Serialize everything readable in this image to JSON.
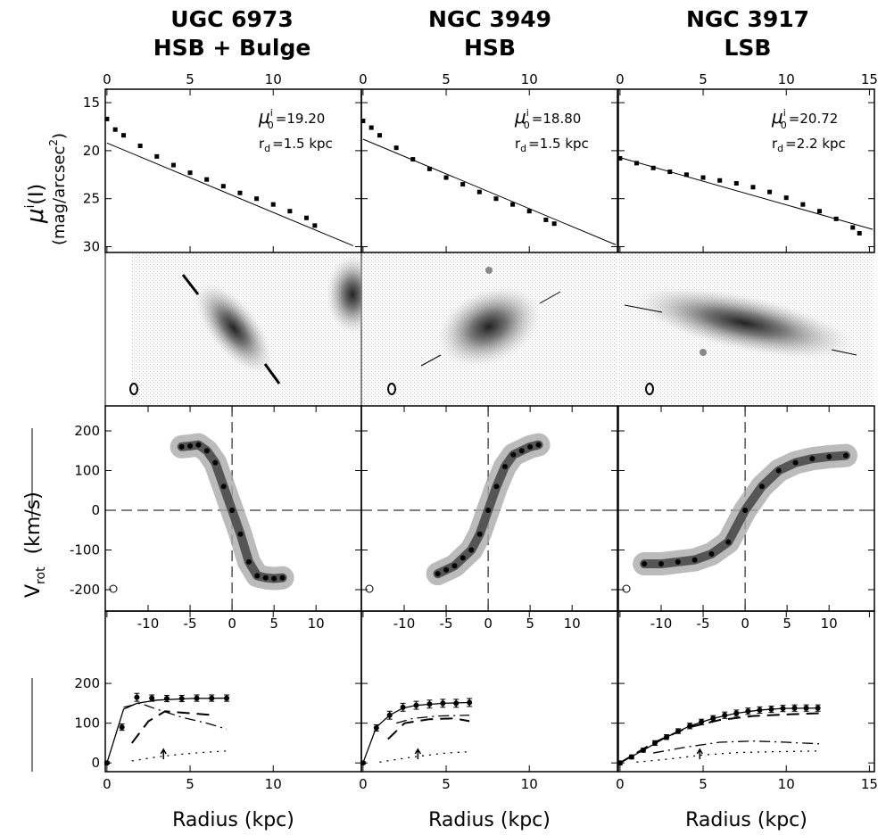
{
  "titles": [
    [
      "UGC 6973",
      "HSB + Bulge"
    ],
    [
      "NGC 3949",
      "HSB"
    ],
    [
      "NGC 3917",
      "LSB"
    ]
  ],
  "v_label": [
    "V",
    "rot",
    "(km/s)"
  ],
  "chart_data": [
    {
      "type": "scatter",
      "x": [
        0,
        0.5,
        1,
        2,
        3,
        4,
        5,
        6,
        7,
        8,
        9,
        10,
        11,
        12,
        12.5
      ],
      "values": [
        16.7,
        17.8,
        18.4,
        19.5,
        20.6,
        21.5,
        22.3,
        23.0,
        23.7,
        24.4,
        25.0,
        25.6,
        26.3,
        27.0,
        27.8
      ],
      "color": "#000000",
      "fit": {
        "x": [
          0,
          14.8
        ],
        "values": [
          19.2,
          29.9
        ]
      },
      "xlim": [
        -0.1,
        15.3
      ],
      "ylim": [
        30.6,
        13.6
      ],
      "xticks": [
        0,
        5,
        10
      ],
      "yticks": [
        15,
        20,
        25,
        30
      ],
      "ytick_labels": true,
      "annotations": [
        [
          "μ",
          "i",
          "0",
          "=19.20"
        ],
        [
          "r",
          "d",
          "=1.5 kpc"
        ]
      ],
      "ylabel": [
        [
          "μ",
          "i",
          "(I)"
        ],
        [
          "(mag/arcsec",
          "2",
          ")"
        ]
      ]
    },
    {
      "type": "scatter",
      "x": [
        0,
        0.5,
        1,
        2,
        3,
        4,
        5,
        6,
        7,
        8,
        9,
        10,
        11,
        11.5
      ],
      "values": [
        16.9,
        17.6,
        18.4,
        19.7,
        20.9,
        21.9,
        22.8,
        23.5,
        24.3,
        25.0,
        25.6,
        26.3,
        27.2,
        27.6
      ],
      "color": "#000000",
      "fit": {
        "x": [
          0,
          15.2
        ],
        "values": [
          18.8,
          29.8
        ]
      },
      "xlim": [
        -0.1,
        15.3
      ],
      "ylim": [
        30.6,
        13.6
      ],
      "xticks": [
        0,
        5,
        10
      ],
      "yticks": [
        15,
        20,
        25,
        30
      ],
      "ytick_labels": false,
      "annotations": [
        [
          "μ",
          "i",
          "0",
          "=18.80"
        ],
        [
          "r",
          "d",
          "=1.5 kpc"
        ]
      ]
    },
    {
      "type": "scatter",
      "x": [
        0,
        1,
        2,
        3,
        4,
        5,
        6,
        7,
        8,
        9,
        10,
        11,
        12,
        13,
        14,
        14.4
      ],
      "values": [
        20.8,
        21.3,
        21.8,
        22.2,
        22.5,
        22.8,
        23.1,
        23.4,
        23.8,
        24.3,
        24.9,
        25.6,
        26.3,
        27.1,
        28.0,
        28.6
      ],
      "color": "#000000",
      "fit": {
        "x": [
          0,
          15.2
        ],
        "values": [
          20.72,
          28.2
        ]
      },
      "xlim": [
        -0.1,
        15.3
      ],
      "ylim": [
        30.6,
        13.6
      ],
      "xticks": [
        0,
        5,
        10,
        15
      ],
      "yticks": [
        15,
        20,
        25,
        30
      ],
      "ytick_labels": false,
      "annotations": [
        [
          "μ",
          "i",
          "0",
          "=20.72"
        ],
        [
          "r",
          "d",
          "=2.2 kpc"
        ]
      ]
    },
    {
      "type": "contour",
      "x": [
        -6,
        -5,
        -4,
        -3,
        -2,
        -1,
        0,
        1,
        2,
        3,
        4,
        5,
        6
      ],
      "values": [
        160,
        162,
        165,
        150,
        120,
        60,
        0,
        -60,
        -130,
        -165,
        -170,
        -172,
        -170
      ],
      "color": "#000000",
      "zero_lines": true,
      "xlim": [
        -15.1,
        15.4
      ],
      "ylim": [
        -254,
        263
      ],
      "xticks": [
        -10,
        -5,
        0,
        5,
        10
      ],
      "yticks": [
        200,
        100,
        0,
        -100,
        -200
      ],
      "ytick_labels": true
    },
    {
      "type": "contour",
      "x": [
        -6,
        -5,
        -4,
        -3,
        -2,
        -1,
        0,
        1,
        2,
        3,
        4,
        5,
        6
      ],
      "values": [
        -160,
        -150,
        -140,
        -120,
        -100,
        -60,
        0,
        60,
        110,
        140,
        150,
        160,
        165
      ],
      "color": "#000000",
      "zero_lines": true,
      "xlim": [
        -15.1,
        15.4
      ],
      "ylim": [
        -254,
        263
      ],
      "xticks": [
        -10,
        -5,
        0,
        5,
        10
      ],
      "yticks": [
        200,
        100,
        0,
        -100,
        -200
      ],
      "ytick_labels": false
    },
    {
      "type": "contour",
      "x": [
        -12,
        -10,
        -8,
        -6,
        -4,
        -2,
        0,
        2,
        4,
        6,
        8,
        10,
        12
      ],
      "values": [
        -135,
        -135,
        -130,
        -125,
        -110,
        -80,
        0,
        60,
        100,
        120,
        130,
        135,
        138
      ],
      "color": "#000000",
      "zero_lines": true,
      "xlim": [
        -15.1,
        15.4
      ],
      "ylim": [
        -254,
        263
      ],
      "xticks": [
        -10,
        -5,
        0,
        5,
        10
      ],
      "yticks": [
        200,
        100,
        0,
        -100,
        -200
      ],
      "ytick_labels": false
    },
    {
      "type": "line",
      "x": [
        0,
        0.9,
        1.8,
        2.7,
        3.6,
        4.5,
        5.4,
        6.3,
        7.2
      ],
      "values": [
        0,
        90,
        165,
        163,
        162,
        162,
        163,
        163,
        163
      ],
      "errors": [
        3,
        8,
        10,
        8,
        8,
        8,
        8,
        8,
        8
      ],
      "color": "#000000",
      "models": [
        {
          "dash": "solid",
          "x": [
            0,
            1,
            1.8,
            3,
            5,
            7.2
          ],
          "values": [
            0,
            135,
            150,
            158,
            162,
            163
          ]
        },
        {
          "dash": "dashed",
          "x": [
            1.5,
            2.5,
            3.5,
            5,
            6.5
          ],
          "values": [
            50,
            105,
            130,
            125,
            120
          ]
        },
        {
          "dash": "dashdot",
          "x": [
            1,
            2,
            3,
            4.5,
            6,
            7.2
          ],
          "values": [
            140,
            150,
            135,
            115,
            100,
            85
          ]
        },
        {
          "dash": "dotted",
          "x": [
            1.5,
            3,
            4.5,
            6,
            7.2
          ],
          "values": [
            5,
            15,
            22,
            27,
            30
          ]
        }
      ],
      "arrow_x": 3.4,
      "x_label": "Radius (kpc)",
      "xlim": [
        -0.1,
        15.3
      ],
      "ylim": [
        -22,
        382
      ],
      "xticks": [
        0,
        5,
        10
      ],
      "yticks": [
        0,
        100,
        200
      ],
      "ytick_labels": true
    },
    {
      "type": "line",
      "x": [
        0,
        0.8,
        1.6,
        2.4,
        3.2,
        4,
        4.8,
        5.6,
        6.4
      ],
      "values": [
        0,
        88,
        120,
        140,
        145,
        148,
        150,
        150,
        152
      ],
      "errors": [
        3,
        8,
        10,
        10,
        10,
        10,
        10,
        10,
        10
      ],
      "color": "#000000",
      "models": [
        {
          "dash": "solid",
          "x": [
            0,
            0.8,
            1.6,
            2.4,
            3.2,
            4.8,
            6.4
          ],
          "values": [
            0,
            90,
            120,
            138,
            145,
            150,
            152
          ]
        },
        {
          "dash": "dashed",
          "x": [
            1.5,
            2.5,
            4,
            5.5,
            6.4
          ],
          "values": [
            60,
            100,
            110,
            112,
            105
          ]
        },
        {
          "dash": "dashdot",
          "x": [
            2,
            3,
            4.5,
            6.4
          ],
          "values": [
            100,
            112,
            118,
            120
          ]
        },
        {
          "dash": "dotted",
          "x": [
            1,
            3,
            5,
            6.4
          ],
          "values": [
            2,
            15,
            25,
            28
          ]
        }
      ],
      "arrow_x": 3.3,
      "x_label": "Radius (kpc)",
      "xlim": [
        -0.1,
        15.3
      ],
      "ylim": [
        -22,
        382
      ],
      "xticks": [
        0,
        5,
        10
      ],
      "yticks": [
        0,
        100,
        200
      ],
      "ytick_labels": false
    },
    {
      "type": "line",
      "x": [
        0,
        0.7,
        1.4,
        2.1,
        2.8,
        3.5,
        4.2,
        4.9,
        5.6,
        6.3,
        7,
        7.7,
        8.4,
        9.1,
        9.8,
        10.5,
        11.2,
        11.9
      ],
      "values": [
        0,
        15,
        32,
        50,
        65,
        80,
        93,
        103,
        112,
        120,
        125,
        130,
        133,
        135,
        137,
        138,
        138,
        138
      ],
      "errors": [
        5,
        5,
        5,
        6,
        6,
        6,
        7,
        7,
        7,
        8,
        8,
        8,
        8,
        8,
        8,
        8,
        8,
        8
      ],
      "color": "#000000",
      "models": [
        {
          "dash": "solid",
          "x": [
            0,
            1.4,
            2.8,
            4.2,
            5.6,
            7,
            8.4,
            9.8,
            11.9
          ],
          "values": [
            0,
            32,
            65,
            93,
            112,
            125,
            133,
            137,
            138
          ]
        },
        {
          "dash": "dashed",
          "x": [
            0,
            2,
            4,
            6,
            8,
            10,
            12
          ],
          "values": [
            0,
            50,
            88,
            108,
            118,
            122,
            125
          ]
        },
        {
          "dash": "dashdot",
          "x": [
            2,
            4,
            6,
            8,
            10,
            12
          ],
          "values": [
            25,
            40,
            52,
            55,
            52,
            48
          ]
        },
        {
          "dash": "dotted",
          "x": [
            1,
            3,
            5,
            7,
            9,
            12
          ],
          "values": [
            2,
            10,
            20,
            26,
            28,
            30
          ]
        }
      ],
      "arrow_x": 4.8,
      "x_label": "Radius (kpc)",
      "xlim": [
        -0.1,
        15.3
      ],
      "ylim": [
        -22,
        382
      ],
      "xticks": [
        0,
        5,
        10,
        15
      ],
      "yticks": [
        0,
        100,
        200
      ],
      "ytick_labels": false
    }
  ]
}
